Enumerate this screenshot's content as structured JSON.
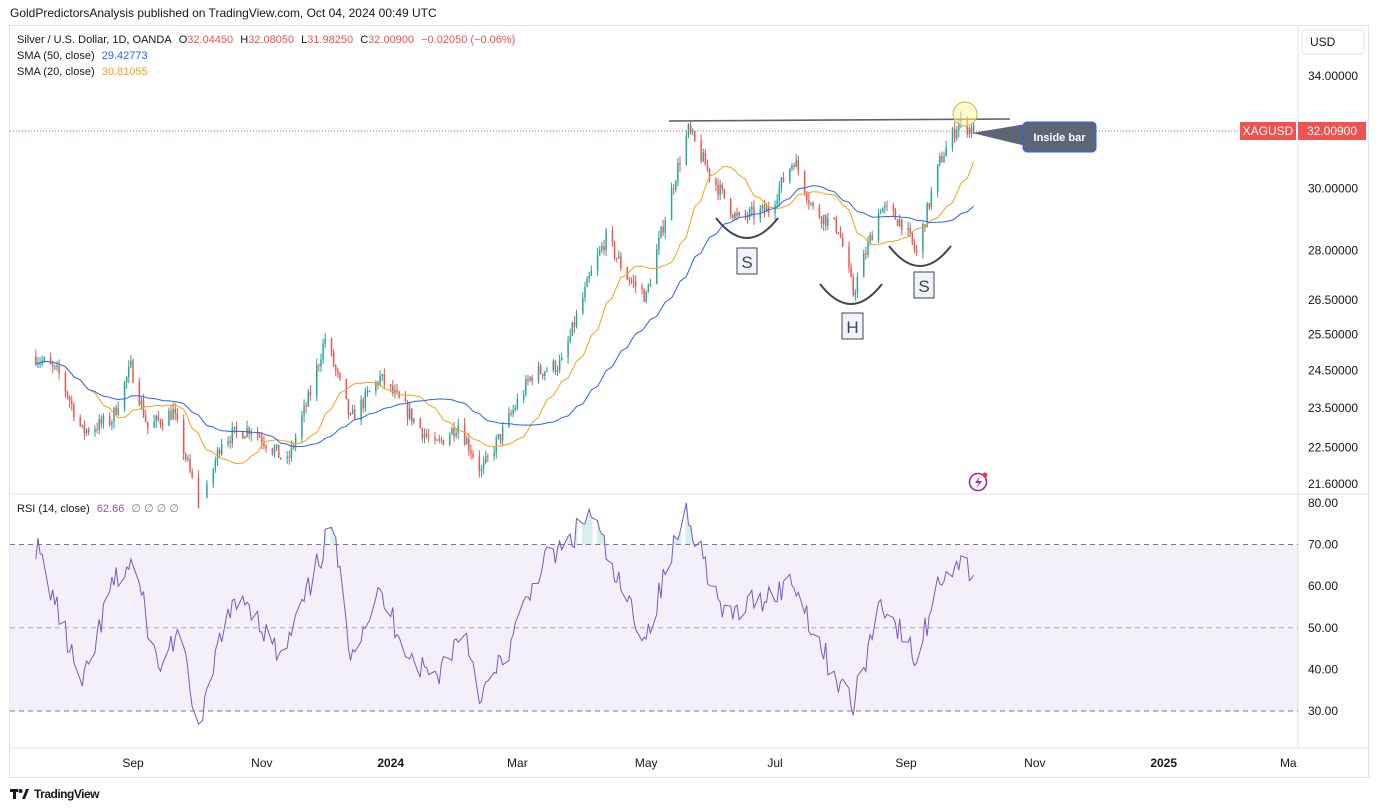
{
  "header": {
    "published": "GoldPredictorsAnalysis published on TradingView.com, Oct 04, 2024 00:49 UTC"
  },
  "legend": {
    "symbol": "Silver / U.S. Dollar, 1D, OANDA",
    "o_label": "O",
    "o": "32.04450",
    "h_label": "H",
    "h": "32.08050",
    "l_label": "L",
    "l": "31.98250",
    "c_label": "C",
    "c": "32.00900",
    "change": "−0.02050 (−0.06%)",
    "sma50": "SMA (50, close)",
    "sma50_val": "29.42773",
    "sma20": "SMA (20, close)",
    "sma20_val": "30.81055",
    "rsi": "RSI (14, close)",
    "rsi_val": "62.66",
    "rsi_extra": "∅ ∅ ∅ ∅"
  },
  "currency": "USD",
  "price_tag": {
    "symbol": "XAGUSD",
    "value": "32.00900"
  },
  "annotation": {
    "callout": "Inside bar",
    "s1": "S",
    "h": "H",
    "s2": "S"
  },
  "footer": {
    "brand": "TradingView"
  },
  "colors": {
    "up": "#26a69a",
    "down": "#ef5350",
    "sma20": "#f7a21b",
    "sma50": "#2962ff",
    "rsi": "#7e57c2",
    "tag": "#ef5350"
  },
  "chart_data": [
    {
      "type": "candlestick",
      "symbol": "XAGUSD",
      "x_axis_labels": [
        "Sep",
        "Nov",
        "2024",
        "Mar",
        "May",
        "Jul",
        "Sep",
        "Nov",
        "2025",
        "Ma"
      ],
      "y_ticks": [
        "34.00000",
        "30.00000",
        "28.00000",
        "26.50000",
        "25.50000",
        "24.50000",
        "23.50000",
        "22.50000",
        "21.60000"
      ],
      "y_range": [
        21.6,
        34.0
      ],
      "scale": "log",
      "last_price": 32.009,
      "close_path": [
        [
          "2023-07-17",
          24.9
        ],
        [
          "2023-07-28",
          24.4
        ],
        [
          "2023-08-08",
          22.9
        ],
        [
          "2023-08-22",
          23.2
        ],
        [
          "2023-08-31",
          24.6
        ],
        [
          "2023-09-08",
          23.0
        ],
        [
          "2023-09-20",
          23.4
        ],
        [
          "2023-10-03",
          20.9
        ],
        [
          "2023-10-13",
          22.7
        ],
        [
          "2023-10-27",
          23.0
        ],
        [
          "2023-11-13",
          22.1
        ],
        [
          "2023-11-24",
          23.9
        ],
        [
          "2023-12-01",
          25.4
        ],
        [
          "2023-12-13",
          23.2
        ],
        [
          "2023-12-27",
          24.3
        ],
        [
          "2024-01-12",
          23.2
        ],
        [
          "2024-01-22",
          22.5
        ],
        [
          "2024-02-02",
          23.1
        ],
        [
          "2024-02-13",
          21.9
        ],
        [
          "2024-02-23",
          22.9
        ],
        [
          "2024-03-08",
          24.4
        ],
        [
          "2024-03-22",
          24.7
        ],
        [
          "2024-04-05",
          27.3
        ],
        [
          "2024-04-12",
          28.4
        ],
        [
          "2024-04-22",
          27.2
        ],
        [
          "2024-05-01",
          26.6
        ],
        [
          "2024-05-17",
          31.0
        ],
        [
          "2024-05-21",
          32.0
        ],
        [
          "2024-05-31",
          30.5
        ],
        [
          "2024-06-13",
          29.0
        ],
        [
          "2024-06-28",
          29.3
        ],
        [
          "2024-07-10",
          31.0
        ],
        [
          "2024-07-19",
          29.3
        ],
        [
          "2024-07-31",
          28.7
        ],
        [
          "2024-08-07",
          26.7
        ],
        [
          "2024-08-20",
          29.4
        ],
        [
          "2024-08-30",
          28.9
        ],
        [
          "2024-09-06",
          27.9
        ],
        [
          "2024-09-17",
          30.9
        ],
        [
          "2024-09-26",
          32.3
        ],
        [
          "2024-10-03",
          32.0
        ]
      ],
      "series": [
        {
          "name": "SMA (20, close)",
          "last": 30.81055
        },
        {
          "name": "SMA (50, close)",
          "last": 29.42773
        }
      ],
      "annotations": [
        {
          "label": "S",
          "date": "2024-06-20",
          "price": 28.9
        },
        {
          "label": "H",
          "date": "2024-08-07",
          "price": 26.6
        },
        {
          "label": "S",
          "date": "2024-09-12",
          "price": 28.1
        },
        {
          "label": "Inside bar",
          "date": "2024-10-02",
          "price": 32.0
        },
        {
          "type": "horizontal_line",
          "from": "2024-05-20",
          "to": "2024-10-15",
          "price": 32.4
        }
      ]
    },
    {
      "type": "line",
      "name": "RSI (14, close)",
      "y_ticks": [
        "80.00",
        "70.00",
        "60.00",
        "50.00",
        "40.00",
        "30.00"
      ],
      "y_range": [
        25,
        80
      ],
      "bands": [
        70,
        50,
        30
      ],
      "last": 62.66,
      "points": [
        [
          "2023-07-17",
          70
        ],
        [
          "2023-07-25",
          58
        ],
        [
          "2023-08-08",
          35
        ],
        [
          "2023-08-22",
          60
        ],
        [
          "2023-09-01",
          66
        ],
        [
          "2023-09-13",
          40
        ],
        [
          "2023-09-22",
          49
        ],
        [
          "2023-10-03",
          25
        ],
        [
          "2023-10-13",
          50
        ],
        [
          "2023-10-24",
          58
        ],
        [
          "2023-11-10",
          42
        ],
        [
          "2023-11-24",
          60
        ],
        [
          "2023-12-04",
          75
        ],
        [
          "2023-12-13",
          45
        ],
        [
          "2023-12-27",
          58
        ],
        [
          "2024-01-12",
          42
        ],
        [
          "2024-01-22",
          38
        ],
        [
          "2024-02-05",
          50
        ],
        [
          "2024-02-13",
          33
        ],
        [
          "2024-02-26",
          45
        ],
        [
          "2024-03-12",
          65
        ],
        [
          "2024-03-25",
          70
        ],
        [
          "2024-04-05",
          78
        ],
        [
          "2024-04-16",
          62
        ],
        [
          "2024-05-01",
          48
        ],
        [
          "2024-05-20",
          79
        ],
        [
          "2024-06-07",
          52
        ],
        [
          "2024-06-20",
          56
        ],
        [
          "2024-07-10",
          61
        ],
        [
          "2024-07-24",
          44
        ],
        [
          "2024-08-07",
          31
        ],
        [
          "2024-08-20",
          57
        ],
        [
          "2024-09-06",
          42
        ],
        [
          "2024-09-17",
          62
        ],
        [
          "2024-09-26",
          66
        ],
        [
          "2024-10-03",
          62.66
        ]
      ]
    }
  ]
}
